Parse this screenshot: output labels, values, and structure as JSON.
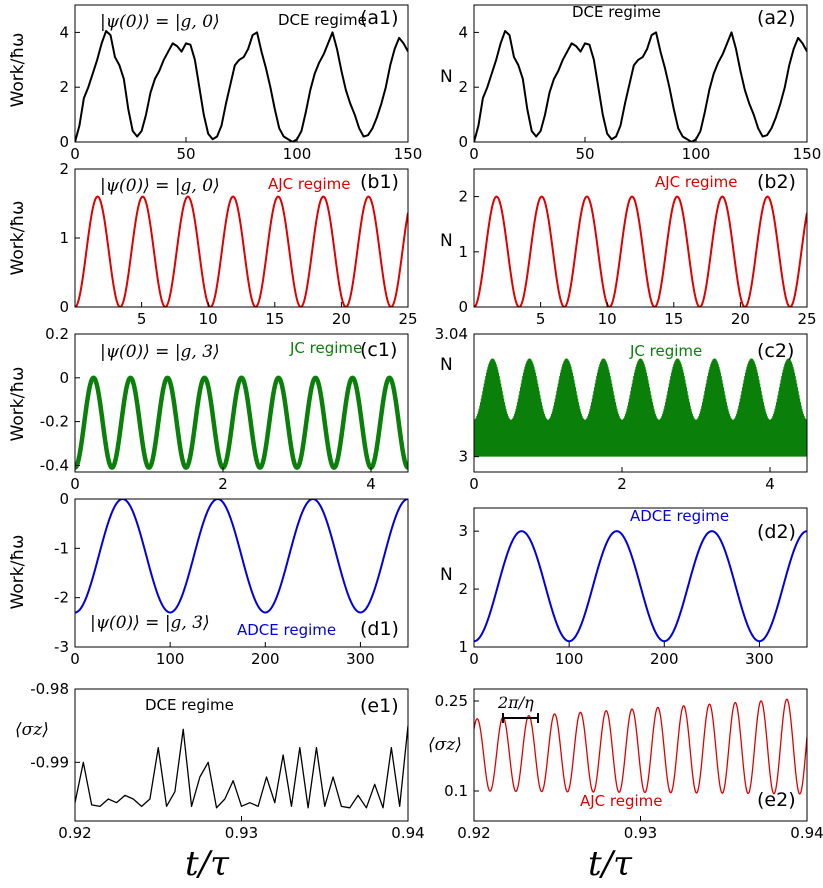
{
  "x_axis_label": "t/τ",
  "chart_data": [
    {
      "id": "a1",
      "type": "line",
      "panel_label": "(a1)",
      "regime": "DCE regime",
      "regime_color": "#000000",
      "state_label": "|ψ(0)⟩ = |g, 0⟩",
      "ylabel": "Work/ħω",
      "xlim": [
        0,
        150
      ],
      "ylim": [
        0,
        5
      ],
      "xticks": [
        "0",
        "50",
        "100",
        "150"
      ],
      "yticks": [
        "0",
        "2",
        "4"
      ],
      "xtick_values": [
        0,
        50,
        100,
        150
      ],
      "ytick_values": [
        0,
        2,
        4
      ],
      "line_color": "#000000",
      "x": [
        0,
        2,
        4,
        6,
        8,
        10,
        12,
        14,
        16,
        18,
        20,
        22,
        24,
        26,
        28,
        30,
        32,
        34,
        36,
        38,
        40,
        42,
        44,
        46,
        48,
        50,
        52,
        54,
        56,
        58,
        60,
        62,
        64,
        66,
        68,
        70,
        72,
        74,
        76,
        78,
        80,
        82,
        84,
        86,
        88,
        90,
        92,
        94,
        96,
        98,
        100,
        102,
        104,
        106,
        108,
        110,
        112,
        114,
        116,
        118,
        120,
        122,
        124,
        126,
        128,
        130,
        132,
        134,
        136,
        138,
        140,
        142,
        144,
        146,
        148,
        150
      ],
      "y": [
        0,
        0.6,
        1.6,
        2.0,
        2.5,
        3.0,
        3.6,
        4.05,
        3.9,
        3.1,
        2.8,
        2.3,
        1.2,
        0.4,
        0.2,
        0.4,
        1.0,
        1.8,
        2.3,
        2.6,
        3.0,
        3.3,
        3.6,
        3.5,
        3.3,
        3.6,
        3.55,
        3.0,
        2.0,
        1.0,
        0.3,
        0.1,
        0.2,
        0.6,
        1.4,
        2.1,
        2.8,
        3.0,
        3.1,
        3.4,
        3.9,
        4.0,
        3.3,
        2.7,
        2.0,
        1.2,
        0.5,
        0.2,
        0.1,
        0.0,
        0.1,
        0.4,
        1.1,
        1.9,
        2.5,
        2.9,
        3.2,
        3.6,
        4.0,
        3.4,
        2.6,
        1.9,
        1.4,
        1.0,
        0.5,
        0.2,
        0.25,
        0.5,
        0.9,
        1.4,
        2.0,
        2.8,
        3.4,
        3.8,
        3.6,
        3.3
      ]
    },
    {
      "id": "a2",
      "type": "line",
      "panel_label": "(a2)",
      "regime": "DCE regime",
      "regime_color": "#000000",
      "state_label": "",
      "ylabel": "N",
      "xlim": [
        0,
        150
      ],
      "ylim": [
        0,
        5
      ],
      "xticks": [
        "0",
        "50",
        "100",
        "150"
      ],
      "yticks": [
        "0",
        "2",
        "4"
      ],
      "xtick_values": [
        0,
        50,
        100,
        150
      ],
      "ytick_values": [
        0,
        2,
        4
      ],
      "line_color": "#000000",
      "x": [
        0,
        2,
        4,
        6,
        8,
        10,
        12,
        14,
        16,
        18,
        20,
        22,
        24,
        26,
        28,
        30,
        32,
        34,
        36,
        38,
        40,
        42,
        44,
        46,
        48,
        50,
        52,
        54,
        56,
        58,
        60,
        62,
        64,
        66,
        68,
        70,
        72,
        74,
        76,
        78,
        80,
        82,
        84,
        86,
        88,
        90,
        92,
        94,
        96,
        98,
        100,
        102,
        104,
        106,
        108,
        110,
        112,
        114,
        116,
        118,
        120,
        122,
        124,
        126,
        128,
        130,
        132,
        134,
        136,
        138,
        140,
        142,
        144,
        146,
        148,
        150
      ],
      "y": [
        0,
        0.6,
        1.6,
        2.0,
        2.5,
        3.0,
        3.6,
        4.05,
        3.9,
        3.1,
        2.8,
        2.3,
        1.2,
        0.4,
        0.2,
        0.4,
        1.0,
        1.8,
        2.3,
        2.6,
        3.0,
        3.3,
        3.6,
        3.5,
        3.3,
        3.6,
        3.55,
        3.0,
        2.0,
        1.0,
        0.3,
        0.1,
        0.2,
        0.6,
        1.4,
        2.1,
        2.8,
        3.0,
        3.1,
        3.4,
        3.9,
        4.0,
        3.3,
        2.7,
        2.0,
        1.2,
        0.5,
        0.2,
        0.1,
        0.0,
        0.1,
        0.4,
        1.1,
        1.9,
        2.5,
        2.9,
        3.2,
        3.6,
        4.0,
        3.4,
        2.6,
        1.9,
        1.4,
        1.0,
        0.5,
        0.2,
        0.25,
        0.5,
        0.9,
        1.4,
        2.0,
        2.8,
        3.4,
        3.8,
        3.6,
        3.3
      ]
    },
    {
      "id": "b1",
      "type": "line",
      "panel_label": "(b1)",
      "regime": "AJC regime",
      "regime_color": "#e00000",
      "state_label": "|ψ(0)⟩ = |g, 0⟩",
      "ylabel": "Work/ħω",
      "xlim": [
        0,
        25
      ],
      "ylim": [
        0,
        2
      ],
      "xticks": [
        "5",
        "10",
        "15",
        "20",
        "25"
      ],
      "yticks": [
        "0",
        "1",
        "2"
      ],
      "xtick_values": [
        5,
        10,
        15,
        20,
        25
      ],
      "ytick_values": [
        0,
        1,
        2
      ],
      "line_color": "#e00000",
      "function": {
        "kind": "cosine",
        "amplitude": 0.8,
        "offset": 0.8,
        "period": 3.39,
        "phase": 0
      }
    },
    {
      "id": "b2",
      "type": "line",
      "panel_label": "(b2)",
      "regime": "AJC regime",
      "regime_color": "#e00000",
      "state_label": "",
      "ylabel": "N",
      "xlim": [
        0,
        25
      ],
      "ylim": [
        0,
        2.5
      ],
      "xticks": [
        "5",
        "10",
        "15",
        "20",
        "25"
      ],
      "yticks": [
        "0",
        "1",
        "2"
      ],
      "xtick_values": [
        5,
        10,
        15,
        20,
        25
      ],
      "ytick_values": [
        0,
        1,
        2
      ],
      "line_color": "#e00000",
      "function": {
        "kind": "cosine",
        "amplitude": 1.0,
        "offset": 1.0,
        "period": 3.39,
        "phase": 0
      }
    },
    {
      "id": "c1",
      "type": "line",
      "panel_label": "(c1)",
      "regime": "JC regime",
      "regime_color": "#0a800a",
      "state_label": "|ψ(0)⟩ = |g, 3⟩",
      "ylabel": "Work/ħω",
      "xlim": [
        0,
        4.5
      ],
      "ylim": [
        -0.43,
        0.2
      ],
      "xticks": [
        "0",
        "2",
        "4"
      ],
      "yticks": [
        "0.2",
        "0",
        "-0.2",
        "-0.4"
      ],
      "xtick_values": [
        0,
        2,
        4
      ],
      "ytick_values": [
        0.2,
        0,
        -0.2,
        -0.4
      ],
      "line_color": "#0a800a",
      "function": {
        "kind": "cosine",
        "amplitude": 0.205,
        "offset": -0.205,
        "period": 0.5,
        "phase": 0,
        "band": 0.012
      }
    },
    {
      "id": "c2",
      "type": "area",
      "panel_label": "(c2)",
      "regime": "JC regime",
      "regime_color": "#0a800a",
      "state_label": "",
      "ylabel": "N",
      "xlim": [
        0,
        4.5
      ],
      "ylim": [
        2.995,
        3.04
      ],
      "xticks": [
        "0",
        "2",
        "4"
      ],
      "yticks": [
        "3.04",
        "3"
      ],
      "xtick_values": [
        0,
        2,
        4
      ],
      "ytick_values": [
        3.04,
        3
      ],
      "line_color": "#0a800a",
      "function": {
        "kind": "envelope",
        "base_low": 3.0,
        "base_high": 3.012,
        "peak": 3.032,
        "period": 0.5
      }
    },
    {
      "id": "d1",
      "type": "line",
      "panel_label": "(d1)",
      "regime": "ADCE regime",
      "regime_color": "#0000e0",
      "state_label": "|ψ(0)⟩ = |g, 3⟩",
      "ylabel": "Work/ħω",
      "xlim": [
        0,
        350
      ],
      "ylim": [
        -3,
        0
      ],
      "xticks": [
        "0",
        "100",
        "200",
        "300"
      ],
      "yticks": [
        "0",
        "-1",
        "-2",
        "-3"
      ],
      "xtick_values": [
        0,
        100,
        200,
        300
      ],
      "ytick_values": [
        0,
        -1,
        -2,
        -3
      ],
      "line_color": "#0000e0",
      "function": {
        "kind": "cosine",
        "amplitude": 1.15,
        "offset": -1.15,
        "period": 100,
        "phase": 0
      }
    },
    {
      "id": "d2",
      "type": "line",
      "panel_label": "(d2)",
      "regime": "ADCE regime",
      "regime_color": "#0000e0",
      "state_label": "",
      "ylabel": "N",
      "xlim": [
        0,
        350
      ],
      "ylim": [
        1,
        3.4
      ],
      "xticks": [
        "0",
        "100",
        "200",
        "300"
      ],
      "yticks": [
        "1",
        "2",
        "3"
      ],
      "xtick_values": [
        0,
        100,
        200,
        300
      ],
      "ytick_values": [
        1,
        2,
        3
      ],
      "line_color": "#0000e0",
      "function": {
        "kind": "cosine",
        "amplitude": 0.95,
        "offset": 2.05,
        "period": 100,
        "phase": 0
      }
    },
    {
      "id": "e1",
      "type": "line",
      "panel_label": "(e1)",
      "regime": "DCE regime",
      "regime_color": "#000000",
      "state_label": "",
      "ylabel": "⟨σz⟩",
      "xlim": [
        0.92,
        0.94
      ],
      "ylim": [
        -0.998,
        -0.98
      ],
      "xticks": [
        "0.92",
        "0.93",
        "0.94"
      ],
      "yticks": [
        "-0.98",
        "-0.99"
      ],
      "xtick_values": [
        0.92,
        0.93,
        0.94
      ],
      "ytick_values": [
        -0.98,
        -0.99
      ],
      "line_color": "#000000",
      "x": [
        0.92,
        0.9205,
        0.921,
        0.9215,
        0.922,
        0.9225,
        0.923,
        0.9235,
        0.924,
        0.9245,
        0.925,
        0.9255,
        0.926,
        0.9265,
        0.927,
        0.9275,
        0.928,
        0.9285,
        0.929,
        0.9295,
        0.93,
        0.9305,
        0.931,
        0.9315,
        0.932,
        0.9325,
        0.933,
        0.9335,
        0.934,
        0.9345,
        0.935,
        0.9355,
        0.936,
        0.9365,
        0.937,
        0.9375,
        0.938,
        0.9385,
        0.939,
        0.9395,
        0.94
      ],
      "y": [
        -0.9955,
        -0.99,
        -0.9958,
        -0.996,
        -0.995,
        -0.9955,
        -0.9945,
        -0.995,
        -0.996,
        -0.995,
        -0.988,
        -0.996,
        -0.994,
        -0.9855,
        -0.996,
        -0.992,
        -0.99,
        -0.9962,
        -0.995,
        -0.9925,
        -0.996,
        -0.9955,
        -0.996,
        -0.992,
        -0.9955,
        -0.989,
        -0.996,
        -0.988,
        -0.9962,
        -0.988,
        -0.996,
        -0.992,
        -0.996,
        -0.9962,
        -0.9945,
        -0.9962,
        -0.993,
        -0.9962,
        -0.988,
        -0.996,
        -0.985
      ]
    },
    {
      "id": "e2",
      "type": "line",
      "panel_label": "(e2)",
      "regime": "AJC regime",
      "regime_color": "#e00000",
      "state_label": "",
      "ylabel": "⟨σz⟩",
      "xlim": [
        0.92,
        0.94
      ],
      "ylim": [
        0.05,
        0.27
      ],
      "xticks": [
        "0.92",
        "0.93",
        "0.94"
      ],
      "yticks": [
        "0.25",
        "0.1"
      ],
      "xtick_values": [
        0.92,
        0.93,
        0.94
      ],
      "ytick_values": [
        0.25,
        0.1
      ],
      "line_color": "#e00000",
      "annotation": "2π/η",
      "function": {
        "kind": "growing",
        "center": 0.16,
        "amp_start": 0.06,
        "amp_end": 0.08,
        "drift": 0.015,
        "period": 0.00155
      }
    }
  ]
}
